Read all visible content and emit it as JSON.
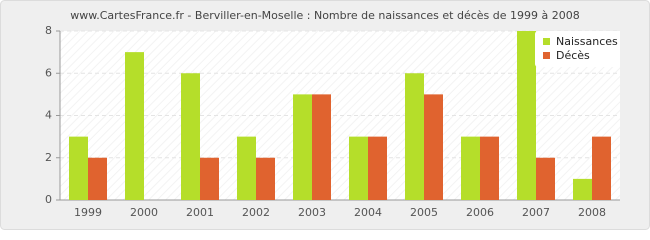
{
  "chart_data": {
    "type": "bar",
    "title": "www.CartesFrance.fr - Berviller-en-Moselle : Nombre de naissances et décès de 1999 à 2008",
    "categories": [
      "1999",
      "2000",
      "2001",
      "2002",
      "2003",
      "2004",
      "2005",
      "2006",
      "2007",
      "2008"
    ],
    "series": [
      {
        "name": "Naissances",
        "color": "#b5de2a",
        "values": [
          3,
          7,
          6,
          3,
          5,
          3,
          6,
          3,
          8,
          1
        ]
      },
      {
        "name": "Décès",
        "color": "#e0632f",
        "values": [
          2,
          0,
          2,
          2,
          5,
          3,
          5,
          3,
          2,
          3
        ]
      }
    ],
    "ylim": [
      0,
      8
    ],
    "yticks": [
      0,
      2,
      4,
      6,
      8
    ],
    "grid": true,
    "legend": "top-right"
  }
}
